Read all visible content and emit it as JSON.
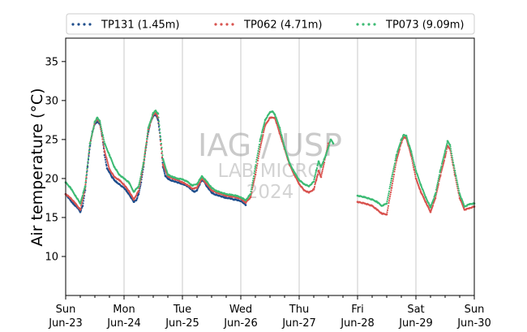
{
  "chart_data": {
    "type": "scatter",
    "ylabel": "Air temperature (°C)",
    "xlabel": "",
    "xlim": [
      "2024-06-23T00:00",
      "2024-06-30T00:00"
    ],
    "ylim": [
      5,
      38
    ],
    "yticks": [
      10,
      15,
      20,
      25,
      30,
      35
    ],
    "xtick_labels": [
      {
        "day": "Sun",
        "date": "Jun-23"
      },
      {
        "day": "Mon",
        "date": "Jun-24"
      },
      {
        "day": "Tue",
        "date": "Jun-25"
      },
      {
        "day": "Wed",
        "date": "Jun-26"
      },
      {
        "day": "Thu",
        "date": "Jun-27"
      },
      {
        "day": "Fri",
        "date": "Jun-28"
      },
      {
        "day": "Sat",
        "date": "Jun-29"
      },
      {
        "day": "Sun",
        "date": "Jun-30"
      }
    ],
    "grid": "vertical at day boundaries",
    "legend_position": "top",
    "watermark": [
      "IAG / USP",
      "LAB MICRO",
      "2024"
    ],
    "series": [
      {
        "name": "TP131 (1.45m)",
        "color": "#1f4e8c",
        "points": [
          [
            "2024-06-23T00:00",
            18.0
          ],
          [
            "2024-06-23T01:00",
            17.6
          ],
          [
            "2024-06-23T02:00",
            17.2
          ],
          [
            "2024-06-23T03:00",
            16.8
          ],
          [
            "2024-06-23T04:00",
            16.5
          ],
          [
            "2024-06-23T05:00",
            16.2
          ],
          [
            "2024-06-23T06:00",
            15.7
          ],
          [
            "2024-06-23T07:00",
            16.5
          ],
          [
            "2024-06-23T08:00",
            18.5
          ],
          [
            "2024-06-23T09:00",
            21.5
          ],
          [
            "2024-06-23T10:00",
            24.2
          ],
          [
            "2024-06-23T11:00",
            26.0
          ],
          [
            "2024-06-23T12:00",
            27.0
          ],
          [
            "2024-06-23T13:00",
            27.3
          ],
          [
            "2024-06-23T14:00",
            27.0
          ],
          [
            "2024-06-23T15:00",
            25.5
          ],
          [
            "2024-06-23T16:00",
            23.0
          ],
          [
            "2024-06-23T17:00",
            21.3
          ],
          [
            "2024-06-23T18:00",
            20.8
          ],
          [
            "2024-06-23T19:00",
            20.2
          ],
          [
            "2024-06-23T20:00",
            19.8
          ],
          [
            "2024-06-23T21:00",
            19.5
          ],
          [
            "2024-06-23T22:00",
            19.3
          ],
          [
            "2024-06-23T23:00",
            19.0
          ],
          [
            "2024-06-24T00:00",
            18.8
          ],
          [
            "2024-06-24T01:00",
            18.4
          ],
          [
            "2024-06-24T02:00",
            18.0
          ],
          [
            "2024-06-24T03:00",
            17.5
          ],
          [
            "2024-06-24T04:00",
            17.0
          ],
          [
            "2024-06-24T05:00",
            17.2
          ],
          [
            "2024-06-24T06:00",
            18.0
          ],
          [
            "2024-06-24T07:00",
            19.5
          ],
          [
            "2024-06-24T08:00",
            21.5
          ],
          [
            "2024-06-24T09:00",
            24.0
          ],
          [
            "2024-06-24T10:00",
            26.0
          ],
          [
            "2024-06-24T11:00",
            27.3
          ],
          [
            "2024-06-24T12:00",
            28.0
          ],
          [
            "2024-06-24T13:00",
            28.2
          ],
          [
            "2024-06-24T14:00",
            27.5
          ],
          [
            "2024-06-24T15:00",
            25.0
          ],
          [
            "2024-06-24T16:00",
            21.5
          ],
          [
            "2024-06-24T17:00",
            20.3
          ],
          [
            "2024-06-24T18:00",
            20.0
          ],
          [
            "2024-06-24T19:00",
            19.8
          ],
          [
            "2024-06-24T20:00",
            19.7
          ],
          [
            "2024-06-24T21:00",
            19.6
          ],
          [
            "2024-06-24T22:00",
            19.5
          ],
          [
            "2024-06-24T23:00",
            19.4
          ],
          [
            "2024-06-25T00:00",
            19.3
          ],
          [
            "2024-06-25T01:00",
            19.2
          ],
          [
            "2024-06-25T02:00",
            19.0
          ],
          [
            "2024-06-25T03:00",
            18.8
          ],
          [
            "2024-06-25T04:00",
            18.5
          ],
          [
            "2024-06-25T05:00",
            18.3
          ],
          [
            "2024-06-25T06:00",
            18.5
          ],
          [
            "2024-06-25T07:00",
            19.2
          ],
          [
            "2024-06-25T08:00",
            19.8
          ],
          [
            "2024-06-25T09:00",
            19.6
          ],
          [
            "2024-06-25T10:00",
            19.0
          ],
          [
            "2024-06-25T11:00",
            18.6
          ],
          [
            "2024-06-25T12:00",
            18.2
          ],
          [
            "2024-06-25T13:00",
            18.0
          ],
          [
            "2024-06-25T14:00",
            17.9
          ],
          [
            "2024-06-25T15:00",
            17.8
          ],
          [
            "2024-06-25T16:00",
            17.7
          ],
          [
            "2024-06-25T17:00",
            17.6
          ],
          [
            "2024-06-25T18:00",
            17.5
          ],
          [
            "2024-06-25T19:00",
            17.5
          ],
          [
            "2024-06-25T20:00",
            17.4
          ],
          [
            "2024-06-25T21:00",
            17.3
          ],
          [
            "2024-06-25T22:00",
            17.3
          ],
          [
            "2024-06-25T23:00",
            17.2
          ],
          [
            "2024-06-26T00:00",
            17.1
          ],
          [
            "2024-06-26T01:00",
            16.9
          ],
          [
            "2024-06-26T02:00",
            16.6
          ]
        ]
      },
      {
        "name": "TP062 (4.71m)",
        "color": "#d9534f",
        "points": [
          [
            "2024-06-23T00:00",
            18.0
          ],
          [
            "2024-06-23T02:00",
            17.5
          ],
          [
            "2024-06-23T04:00",
            16.8
          ],
          [
            "2024-06-23T06:00",
            16.0
          ],
          [
            "2024-06-23T08:00",
            18.8
          ],
          [
            "2024-06-23T10:00",
            24.5
          ],
          [
            "2024-06-23T12:00",
            27.2
          ],
          [
            "2024-06-23T13:00",
            27.6
          ],
          [
            "2024-06-23T14:00",
            27.2
          ],
          [
            "2024-06-23T16:00",
            23.5
          ],
          [
            "2024-06-23T18:00",
            21.2
          ],
          [
            "2024-06-23T20:00",
            20.2
          ],
          [
            "2024-06-23T22:00",
            19.8
          ],
          [
            "2024-06-24T00:00",
            19.2
          ],
          [
            "2024-06-24T02:00",
            18.4
          ],
          [
            "2024-06-24T04:00",
            17.3
          ],
          [
            "2024-06-24T06:00",
            18.4
          ],
          [
            "2024-06-24T08:00",
            21.8
          ],
          [
            "2024-06-24T10:00",
            26.3
          ],
          [
            "2024-06-24T12:00",
            28.2
          ],
          [
            "2024-06-24T13:00",
            28.4
          ],
          [
            "2024-06-24T14:00",
            27.8
          ],
          [
            "2024-06-24T16:00",
            21.8
          ],
          [
            "2024-06-24T18:00",
            20.3
          ],
          [
            "2024-06-24T20:00",
            20.0
          ],
          [
            "2024-06-24T22:00",
            19.8
          ],
          [
            "2024-06-25T00:00",
            19.5
          ],
          [
            "2024-06-25T02:00",
            19.2
          ],
          [
            "2024-06-25T04:00",
            18.7
          ],
          [
            "2024-06-25T06:00",
            18.8
          ],
          [
            "2024-06-25T08:00",
            20.0
          ],
          [
            "2024-06-25T10:00",
            19.3
          ],
          [
            "2024-06-25T12:00",
            18.5
          ],
          [
            "2024-06-25T14:00",
            18.2
          ],
          [
            "2024-06-25T16:00",
            18.0
          ],
          [
            "2024-06-25T18:00",
            17.8
          ],
          [
            "2024-06-25T20:00",
            17.7
          ],
          [
            "2024-06-25T22:00",
            17.6
          ],
          [
            "2024-06-26T00:00",
            17.4
          ],
          [
            "2024-06-26T02:00",
            16.9
          ],
          [
            "2024-06-26T04:00",
            17.6
          ],
          [
            "2024-06-26T06:00",
            20.5
          ],
          [
            "2024-06-26T08:00",
            24.0
          ],
          [
            "2024-06-26T10:00",
            26.8
          ],
          [
            "2024-06-26T12:00",
            27.8
          ],
          [
            "2024-06-26T14:00",
            27.8
          ],
          [
            "2024-06-26T16:00",
            25.8
          ],
          [
            "2024-06-26T18:00",
            23.8
          ],
          [
            "2024-06-26T20:00",
            21.8
          ],
          [
            "2024-06-26T22:00",
            20.5
          ],
          [
            "2024-06-27T00:00",
            19.3
          ],
          [
            "2024-06-27T02:00",
            18.5
          ],
          [
            "2024-06-27T04:00",
            18.2
          ],
          [
            "2024-06-27T06:00",
            18.6
          ],
          [
            "2024-06-27T07:00",
            19.8
          ],
          [
            "2024-06-27T08:00",
            21.0
          ],
          [
            "2024-06-27T09:00",
            20.2
          ],
          [
            "2024-06-27T12:00",
            24.5
          ],
          [
            "2024-06-28T00:00",
            17.0
          ],
          [
            "2024-06-28T03:00",
            16.8
          ],
          [
            "2024-06-28T06:00",
            16.5
          ],
          [
            "2024-06-28T08:00",
            16.0
          ],
          [
            "2024-06-28T10:00",
            15.5
          ],
          [
            "2024-06-28T12:00",
            15.4
          ],
          [
            "2024-06-28T14:00",
            18.8
          ],
          [
            "2024-06-28T16:00",
            22.3
          ],
          [
            "2024-06-28T18:00",
            24.6
          ],
          [
            "2024-06-28T19:00",
            25.3
          ],
          [
            "2024-06-28T20:00",
            25.2
          ],
          [
            "2024-06-28T22:00",
            23.0
          ],
          [
            "2024-06-29T00:00",
            20.0
          ],
          [
            "2024-06-29T02:00",
            18.3
          ],
          [
            "2024-06-29T04:00",
            17.0
          ],
          [
            "2024-06-29T06:00",
            15.7
          ],
          [
            "2024-06-29T08:00",
            17.5
          ],
          [
            "2024-06-29T10:00",
            20.3
          ],
          [
            "2024-06-29T12:00",
            22.8
          ],
          [
            "2024-06-29T13:00",
            24.2
          ],
          [
            "2024-06-29T14:00",
            23.8
          ],
          [
            "2024-06-29T16:00",
            20.5
          ],
          [
            "2024-06-29T18:00",
            17.5
          ],
          [
            "2024-06-29T20:00",
            16.0
          ],
          [
            "2024-06-29T22:00",
            16.2
          ],
          [
            "2024-06-30T00:00",
            16.4
          ]
        ]
      },
      {
        "name": "TP073 (9.09m)",
        "color": "#3dbb74",
        "points": [
          [
            "2024-06-23T00:00",
            19.5
          ],
          [
            "2024-06-23T02:00",
            18.8
          ],
          [
            "2024-06-23T04:00",
            17.8
          ],
          [
            "2024-06-23T06:00",
            16.8
          ],
          [
            "2024-06-23T08:00",
            19.0
          ],
          [
            "2024-06-23T10:00",
            24.5
          ],
          [
            "2024-06-23T12:00",
            27.3
          ],
          [
            "2024-06-23T13:00",
            27.8
          ],
          [
            "2024-06-23T14:00",
            27.4
          ],
          [
            "2024-06-23T16:00",
            24.5
          ],
          [
            "2024-06-23T18:00",
            23.0
          ],
          [
            "2024-06-23T20:00",
            21.5
          ],
          [
            "2024-06-23T22:00",
            20.5
          ],
          [
            "2024-06-24T00:00",
            20.0
          ],
          [
            "2024-06-24T02:00",
            19.5
          ],
          [
            "2024-06-24T04:00",
            18.3
          ],
          [
            "2024-06-24T06:00",
            19.0
          ],
          [
            "2024-06-24T08:00",
            22.0
          ],
          [
            "2024-06-24T10:00",
            26.5
          ],
          [
            "2024-06-24T12:00",
            28.4
          ],
          [
            "2024-06-24T13:00",
            28.7
          ],
          [
            "2024-06-24T14:00",
            28.3
          ],
          [
            "2024-06-24T16:00",
            22.5
          ],
          [
            "2024-06-24T18:00",
            20.5
          ],
          [
            "2024-06-24T20:00",
            20.2
          ],
          [
            "2024-06-24T22:00",
            20.0
          ],
          [
            "2024-06-25T00:00",
            19.9
          ],
          [
            "2024-06-25T02:00",
            19.6
          ],
          [
            "2024-06-25T04:00",
            19.1
          ],
          [
            "2024-06-25T06:00",
            19.3
          ],
          [
            "2024-06-25T08:00",
            20.3
          ],
          [
            "2024-06-25T10:00",
            19.6
          ],
          [
            "2024-06-25T12:00",
            18.8
          ],
          [
            "2024-06-25T14:00",
            18.4
          ],
          [
            "2024-06-25T16:00",
            18.2
          ],
          [
            "2024-06-25T18:00",
            18.0
          ],
          [
            "2024-06-25T20:00",
            17.9
          ],
          [
            "2024-06-25T22:00",
            17.8
          ],
          [
            "2024-06-26T00:00",
            17.6
          ],
          [
            "2024-06-26T02:00",
            17.2
          ],
          [
            "2024-06-26T04:00",
            18.0
          ],
          [
            "2024-06-26T06:00",
            21.5
          ],
          [
            "2024-06-26T08:00",
            25.0
          ],
          [
            "2024-06-26T10:00",
            27.5
          ],
          [
            "2024-06-26T12:00",
            28.5
          ],
          [
            "2024-06-26T13:00",
            28.6
          ],
          [
            "2024-06-26T14:00",
            28.2
          ],
          [
            "2024-06-26T16:00",
            26.5
          ],
          [
            "2024-06-26T18:00",
            24.0
          ],
          [
            "2024-06-26T20:00",
            22.0
          ],
          [
            "2024-06-26T22:00",
            20.8
          ],
          [
            "2024-06-27T00:00",
            19.8
          ],
          [
            "2024-06-27T02:00",
            19.3
          ],
          [
            "2024-06-27T04:00",
            19.0
          ],
          [
            "2024-06-27T06:00",
            19.6
          ],
          [
            "2024-06-27T07:00",
            21.0
          ],
          [
            "2024-06-27T08:00",
            22.2
          ],
          [
            "2024-06-27T09:00",
            21.5
          ],
          [
            "2024-06-27T11:00",
            23.0
          ],
          [
            "2024-06-27T13:00",
            25.0
          ],
          [
            "2024-06-27T14:00",
            24.5
          ],
          [
            "2024-06-28T00:00",
            17.8
          ],
          [
            "2024-06-28T03:00",
            17.6
          ],
          [
            "2024-06-28T06:00",
            17.3
          ],
          [
            "2024-06-28T08:00",
            17.0
          ],
          [
            "2024-06-28T10:00",
            16.5
          ],
          [
            "2024-06-28T12:00",
            16.8
          ],
          [
            "2024-06-28T14:00",
            20.0
          ],
          [
            "2024-06-28T16:00",
            23.0
          ],
          [
            "2024-06-28T18:00",
            25.0
          ],
          [
            "2024-06-28T19:00",
            25.6
          ],
          [
            "2024-06-28T20:00",
            25.5
          ],
          [
            "2024-06-28T22:00",
            23.5
          ],
          [
            "2024-06-29T00:00",
            21.0
          ],
          [
            "2024-06-29T02:00",
            19.2
          ],
          [
            "2024-06-29T04:00",
            17.6
          ],
          [
            "2024-06-29T06:00",
            16.3
          ],
          [
            "2024-06-29T08:00",
            18.0
          ],
          [
            "2024-06-29T10:00",
            21.0
          ],
          [
            "2024-06-29T12:00",
            23.5
          ],
          [
            "2024-06-29T13:00",
            24.8
          ],
          [
            "2024-06-29T14:00",
            24.3
          ],
          [
            "2024-06-29T16:00",
            21.0
          ],
          [
            "2024-06-29T18:00",
            18.0
          ],
          [
            "2024-06-29T20:00",
            16.4
          ],
          [
            "2024-06-29T22:00",
            16.7
          ],
          [
            "2024-06-30T00:00",
            16.8
          ]
        ]
      }
    ]
  }
}
